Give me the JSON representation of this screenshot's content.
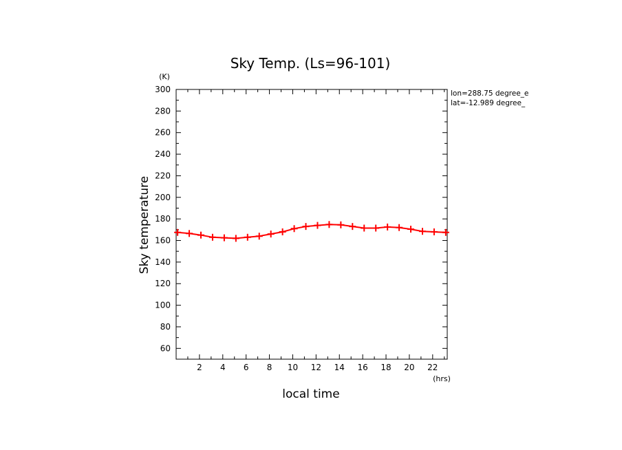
{
  "chart_data": {
    "type": "line",
    "title": "Sky Temp. (Ls=96-101)",
    "xlabel": "local time",
    "ylabel": "Sky temperature",
    "x_unit": "(hrs)",
    "y_unit": "(K)",
    "xlim": [
      0,
      23.25
    ],
    "ylim": [
      50,
      300
    ],
    "xticks": [
      2,
      4,
      6,
      8,
      10,
      12,
      14,
      16,
      18,
      20,
      22
    ],
    "yticks": [
      60,
      80,
      100,
      120,
      140,
      160,
      180,
      200,
      220,
      240,
      260,
      280,
      300
    ],
    "grid": false,
    "annotations": [
      "lon=288.75 degree_e",
      "lat=-12.989 degree_"
    ],
    "series": [
      {
        "color": "#ff0000",
        "marker": "plus",
        "x": [
          0.125,
          1.125,
          2.125,
          3.125,
          4.125,
          5.125,
          6.125,
          7.125,
          8.125,
          9.125,
          10.125,
          11.125,
          12.125,
          13.125,
          14.125,
          15.125,
          16.125,
          17.125,
          18.125,
          19.125,
          20.125,
          21.125,
          22.125,
          23.125
        ],
        "y": [
          167.5,
          166.5,
          165,
          163,
          162.5,
          162,
          163,
          164,
          166,
          168,
          171,
          173,
          174,
          174.8,
          174.5,
          173,
          171.5,
          171.5,
          172.5,
          172,
          170.5,
          168.5,
          168,
          167.5
        ]
      }
    ]
  }
}
